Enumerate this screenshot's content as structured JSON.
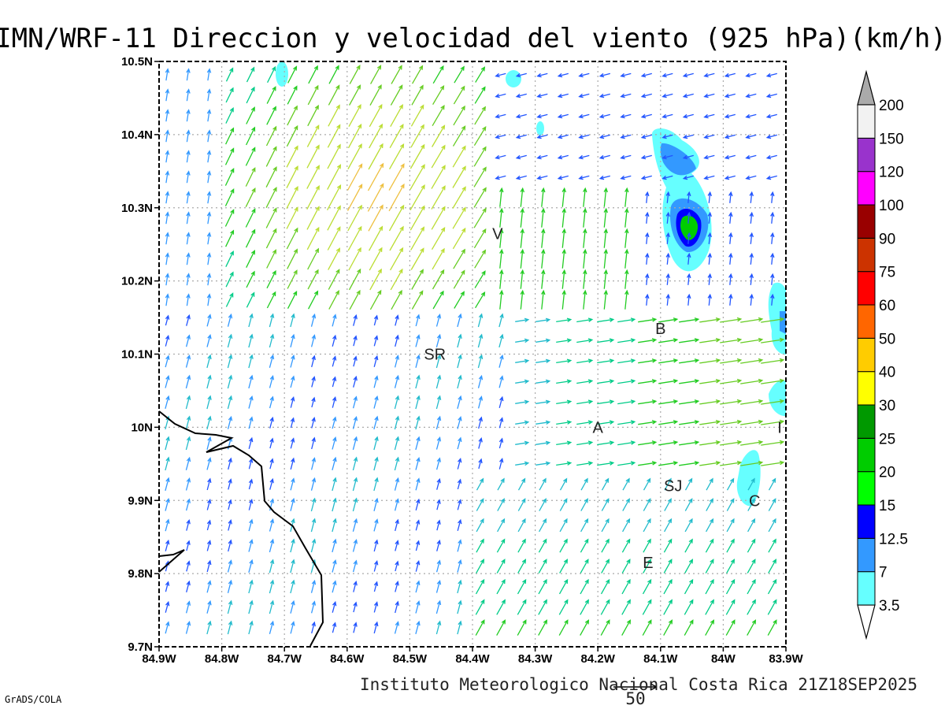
{
  "chart_data": {
    "type": "vector-field",
    "title": "IMN/WRF-11 Direccion y velocidad del viento (925 hPa)(km/h)",
    "footer": "Instituto Meteorologico Nacional Costa Rica 21Z18SEP2025",
    "credit": "GrADS/COLA",
    "reference_vector": {
      "value": 50,
      "label": "50"
    },
    "x_ticks": [
      "84.9W",
      "84.8W",
      "84.7W",
      "84.6W",
      "84.5W",
      "84.4W",
      "84.3W",
      "84.2W",
      "84.1W",
      "84W",
      "83.9W"
    ],
    "y_ticks": [
      "10.5N",
      "10.4N",
      "10.3N",
      "10.2N",
      "10.1N",
      "10N",
      "9.9N",
      "9.8N",
      "9.7N"
    ],
    "xlim": [
      -84.9,
      -83.9
    ],
    "ylim": [
      9.7,
      10.5
    ],
    "grid": true,
    "colorbar": {
      "labels": [
        "3.5",
        "7",
        "12.5",
        "15",
        "20",
        "25",
        "30",
        "40",
        "50",
        "60",
        "75",
        "90",
        "100",
        "120",
        "150",
        "200"
      ],
      "colors": [
        "#66ffff",
        "#3399ff",
        "#0000ff",
        "#00ff00",
        "#00cc00",
        "#009900",
        "#ffff00",
        "#ffcc00",
        "#ff6600",
        "#ff0000",
        "#cc3300",
        "#990000",
        "#ff00ff",
        "#9933cc",
        "#f2f2f2"
      ],
      "lower_arrow_color": "#ffffff",
      "upper_arrow_color": "#aaaaaa"
    },
    "city_labels": [
      {
        "label": "V",
        "lon": -84.36,
        "lat": 10.265
      },
      {
        "label": "SR",
        "lon": -84.46,
        "lat": 10.1
      },
      {
        "label": "B",
        "lon": -84.1,
        "lat": 10.135
      },
      {
        "label": "A",
        "lon": -84.2,
        "lat": 10.0
      },
      {
        "label": "I",
        "lon": -83.91,
        "lat": 10.0
      },
      {
        "label": "SJ",
        "lon": -84.08,
        "lat": 9.92
      },
      {
        "label": "C",
        "lon": -83.95,
        "lat": 9.9
      },
      {
        "label": "E",
        "lon": -84.12,
        "lat": 9.815
      }
    ]
  }
}
